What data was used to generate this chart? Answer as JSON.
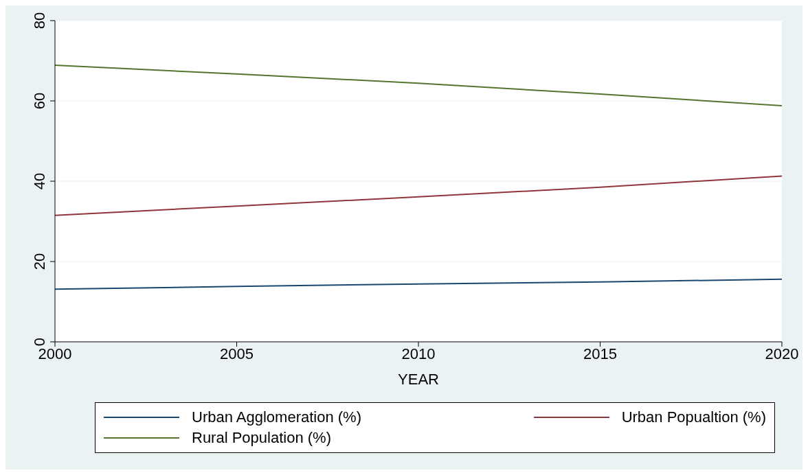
{
  "chart_data": {
    "type": "line",
    "xlabel": "YEAR",
    "x": [
      2000,
      2005,
      2010,
      2015,
      2020
    ],
    "series": [
      {
        "name": "Urban Agglomeration (%)",
        "color": "#1a476f",
        "values": [
          13.1,
          13.8,
          14.4,
          14.9,
          15.6
        ]
      },
      {
        "name": "Urban Popualtion (%)",
        "color": "#90353b",
        "values": [
          31.5,
          33.8,
          36.1,
          38.5,
          41.3
        ]
      },
      {
        "name": "Rural Population (%)",
        "color": "#55752f",
        "values": [
          68.9,
          66.7,
          64.4,
          61.7,
          58.8
        ]
      }
    ],
    "xlim": [
      2000,
      2020
    ],
    "xticks": [
      2000,
      2005,
      2010,
      2015,
      2020
    ],
    "ylim": [
      0,
      80
    ],
    "yticks": [
      0,
      20,
      40,
      60,
      80
    ],
    "grid": "y",
    "legend": "bottom",
    "marker": "none",
    "line_style": "solid"
  }
}
